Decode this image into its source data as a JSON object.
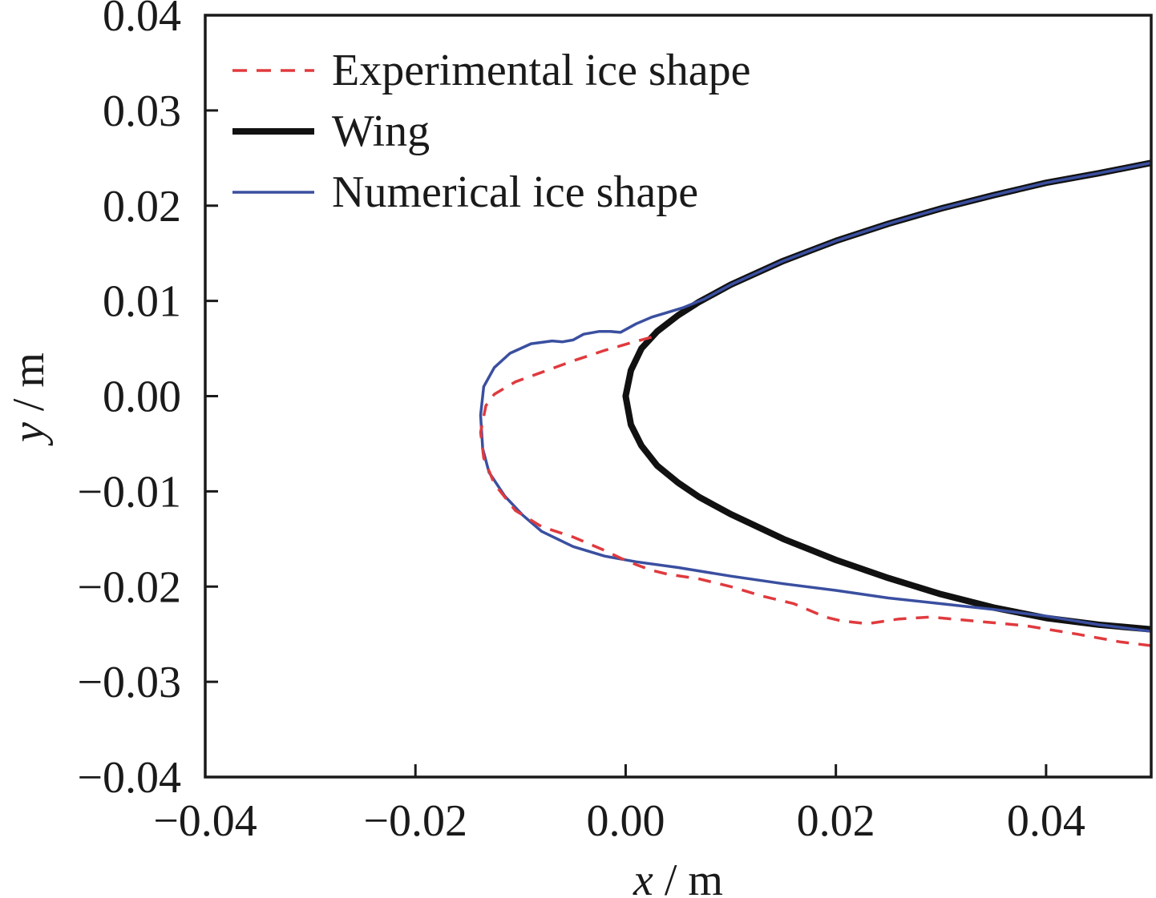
{
  "chart_data": {
    "type": "line",
    "xlim": [
      -0.04,
      0.05
    ],
    "ylim": [
      -0.04,
      0.04
    ],
    "x_ticks": [
      "−0.04",
      "−0.02",
      "0.00",
      "0.02",
      "0.04"
    ],
    "x_tick_values": [
      -0.04,
      -0.02,
      0.0,
      0.02,
      0.04
    ],
    "y_ticks": [
      "0.04",
      "0.03",
      "0.02",
      "0.01",
      "0.00",
      "−0.01",
      "−0.02",
      "−0.03",
      "−0.04"
    ],
    "y_tick_values": [
      0.04,
      0.03,
      0.02,
      0.01,
      0.0,
      -0.01,
      -0.02,
      -0.03,
      -0.04
    ],
    "xlabel_var": "x",
    "xlabel_unit": " / m",
    "ylabel_var": "y",
    "ylabel_unit": " / m",
    "grid": false,
    "legend_position": "top-left",
    "series": [
      {
        "name": "Experimental ice shape",
        "color": "#e03a3e",
        "style": "dashed",
        "points": [
          [
            0.05,
            -0.0262
          ],
          [
            0.047,
            -0.0258
          ],
          [
            0.043,
            -0.025
          ],
          [
            0.038,
            -0.0241
          ],
          [
            0.033,
            -0.0236
          ],
          [
            0.029,
            -0.0232
          ],
          [
            0.026,
            -0.0234
          ],
          [
            0.023,
            -0.0239
          ],
          [
            0.0205,
            -0.0236
          ],
          [
            0.019,
            -0.0232
          ],
          [
            0.016,
            -0.0218
          ],
          [
            0.013,
            -0.021
          ],
          [
            0.01,
            -0.02
          ],
          [
            0.007,
            -0.0192
          ],
          [
            0.004,
            -0.0187
          ],
          [
            0.0025,
            -0.0183
          ],
          [
            0.001,
            -0.0177
          ],
          [
            -0.0005,
            -0.017
          ],
          [
            -0.002,
            -0.0162
          ],
          [
            -0.005,
            -0.0148
          ],
          [
            -0.008,
            -0.0137
          ],
          [
            -0.0105,
            -0.012
          ],
          [
            -0.0125,
            -0.0092
          ],
          [
            -0.0135,
            -0.0065
          ],
          [
            -0.0138,
            -0.0038
          ],
          [
            -0.0133,
            -0.001
          ],
          [
            -0.0125,
            0.0002
          ],
          [
            -0.0105,
            0.0015
          ],
          [
            -0.008,
            0.0025
          ],
          [
            -0.005,
            0.0037
          ],
          [
            -0.002,
            0.0048
          ],
          [
            0.0005,
            0.0056
          ],
          [
            0.0025,
            0.0062
          ]
        ]
      },
      {
        "name": "Wing",
        "color": "#111111",
        "style": "solid",
        "points": [
          [
            0.05,
            0.0245
          ],
          [
            0.045,
            0.0234
          ],
          [
            0.04,
            0.0224
          ],
          [
            0.035,
            0.0211
          ],
          [
            0.03,
            0.0197
          ],
          [
            0.025,
            0.0181
          ],
          [
            0.02,
            0.0163
          ],
          [
            0.015,
            0.0142
          ],
          [
            0.01,
            0.0117
          ],
          [
            0.007,
            0.0099
          ],
          [
            0.005,
            0.0085
          ],
          [
            0.003,
            0.0068
          ],
          [
            0.0015,
            0.005
          ],
          [
            0.0005,
            0.0027
          ],
          [
            0.0,
            0.0
          ],
          [
            0.0005,
            -0.003
          ],
          [
            0.0015,
            -0.0052
          ],
          [
            0.003,
            -0.0073
          ],
          [
            0.005,
            -0.0091
          ],
          [
            0.007,
            -0.0106
          ],
          [
            0.01,
            -0.0124
          ],
          [
            0.015,
            -0.015
          ],
          [
            0.02,
            -0.0172
          ],
          [
            0.025,
            -0.0191
          ],
          [
            0.03,
            -0.0208
          ],
          [
            0.035,
            -0.0222
          ],
          [
            0.04,
            -0.0233
          ],
          [
            0.045,
            -0.024
          ],
          [
            0.05,
            -0.0245
          ]
        ]
      },
      {
        "name": "Numerical ice shape",
        "color": "#3a4fa0",
        "style": "solid",
        "points": [
          [
            0.05,
            0.0245
          ],
          [
            0.045,
            0.0234
          ],
          [
            0.04,
            0.0224
          ],
          [
            0.035,
            0.0211
          ],
          [
            0.03,
            0.0197
          ],
          [
            0.025,
            0.0181
          ],
          [
            0.02,
            0.0163
          ],
          [
            0.015,
            0.0142
          ],
          [
            0.01,
            0.0117
          ],
          [
            0.0075,
            0.0102
          ],
          [
            0.0055,
            0.0093
          ],
          [
            0.004,
            0.0088
          ],
          [
            0.0025,
            0.0083
          ],
          [
            0.001,
            0.0076
          ],
          [
            -0.0005,
            0.0067
          ],
          [
            -0.0015,
            0.0068
          ],
          [
            -0.0025,
            0.0068
          ],
          [
            -0.004,
            0.0065
          ],
          [
            -0.005,
            0.0059
          ],
          [
            -0.006,
            0.0057
          ],
          [
            -0.007,
            0.0058
          ],
          [
            -0.009,
            0.0055
          ],
          [
            -0.011,
            0.0045
          ],
          [
            -0.0125,
            0.003
          ],
          [
            -0.0135,
            0.001
          ],
          [
            -0.0138,
            -0.002
          ],
          [
            -0.0136,
            -0.0055
          ],
          [
            -0.013,
            -0.008
          ],
          [
            -0.0115,
            -0.0105
          ],
          [
            -0.0098,
            -0.0125
          ],
          [
            -0.008,
            -0.0142
          ],
          [
            -0.005,
            -0.0158
          ],
          [
            -0.002,
            -0.0168
          ],
          [
            0.001,
            -0.0174
          ],
          [
            0.005,
            -0.018
          ],
          [
            0.01,
            -0.0189
          ],
          [
            0.015,
            -0.0197
          ],
          [
            0.02,
            -0.0204
          ],
          [
            0.025,
            -0.0212
          ],
          [
            0.03,
            -0.0218
          ],
          [
            0.035,
            -0.0224
          ],
          [
            0.04,
            -0.0231
          ],
          [
            0.045,
            -0.024
          ],
          [
            0.05,
            -0.0247
          ]
        ]
      }
    ]
  }
}
